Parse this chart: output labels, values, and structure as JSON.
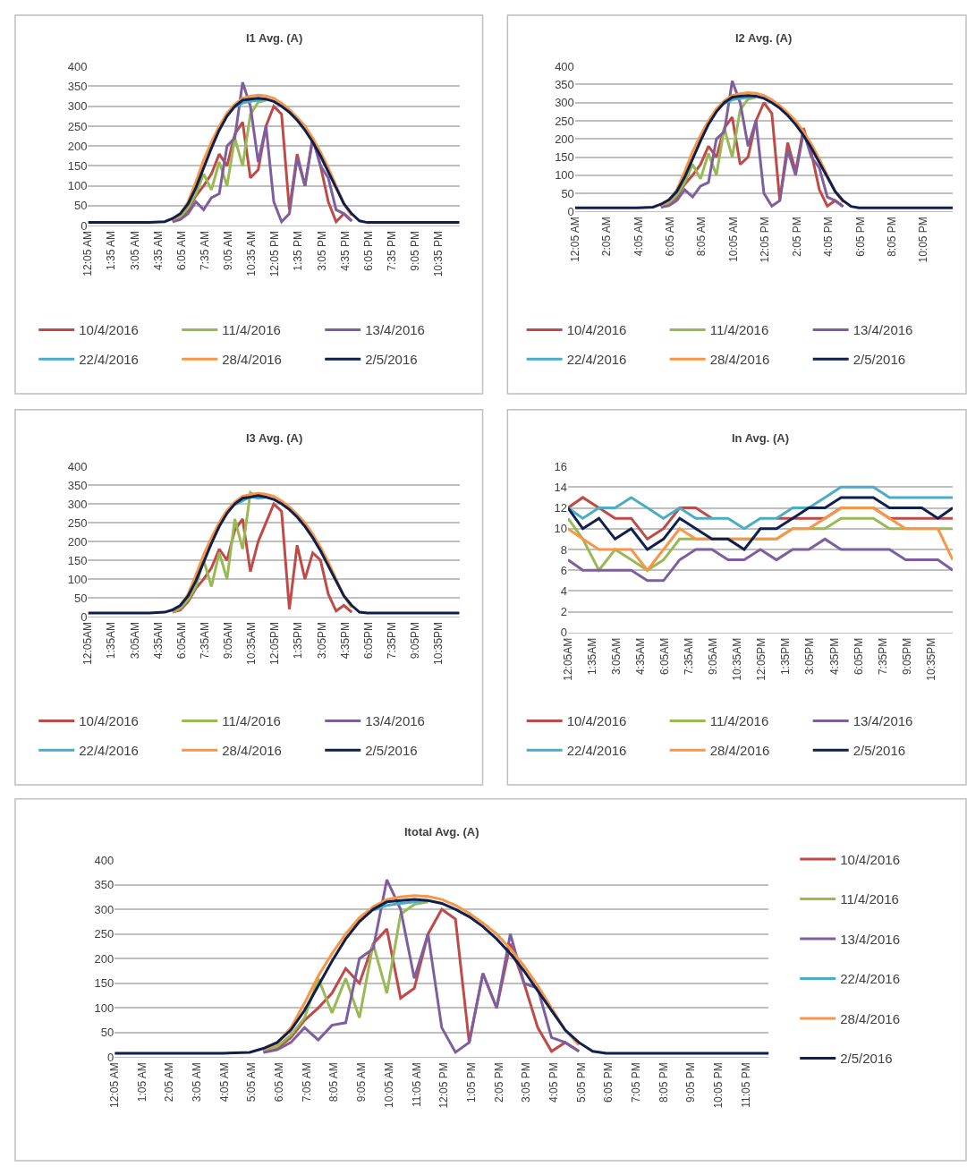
{
  "chart_data": [
    {
      "type": "line",
      "title": "I1 Avg. (A)",
      "x": [
        0.08,
        2,
        4,
        5,
        5.5,
        6,
        6.5,
        7,
        7.5,
        8,
        8.5,
        9,
        9.5,
        10,
        10.5,
        11,
        11.5,
        12,
        12.5,
        13,
        13.5,
        14,
        14.5,
        15,
        15.5,
        16,
        16.5,
        17,
        17.5,
        18,
        20,
        22,
        23.92
      ],
      "series": [
        {
          "name": "10/4/2016",
          "color": "#be4b48",
          "values": [
            null,
            null,
            null,
            null,
            10,
            18,
            40,
            75,
            100,
            130,
            180,
            150,
            230,
            260,
            120,
            140,
            250,
            300,
            280,
            40,
            180,
            100,
            220,
            150,
            60,
            10,
            30,
            12,
            null,
            null,
            null,
            null,
            null
          ]
        },
        {
          "name": "11/4/2016",
          "color": "#98b954",
          "values": [
            null,
            null,
            null,
            null,
            12,
            22,
            45,
            80,
            130,
            90,
            160,
            100,
            220,
            150,
            280,
            310,
            315,
            null,
            null,
            null,
            null,
            null,
            null,
            null,
            null,
            null,
            null,
            null,
            null,
            null,
            null,
            null,
            null
          ]
        },
        {
          "name": "13/4/2016",
          "color": "#7d5fa0",
          "values": [
            null,
            null,
            null,
            null,
            10,
            15,
            30,
            60,
            40,
            70,
            80,
            200,
            220,
            360,
            300,
            160,
            250,
            60,
            10,
            30,
            170,
            100,
            220,
            150,
            120,
            40,
            30,
            12,
            null,
            null,
            null,
            null,
            null
          ]
        },
        {
          "name": "22/4/2016",
          "color": "#4bacc6",
          "values": [
            null,
            null,
            null,
            null,
            null,
            null,
            null,
            null,
            null,
            null,
            null,
            null,
            298,
            308,
            312,
            315,
            318,
            null,
            null,
            null,
            null,
            null,
            null,
            null,
            null,
            null,
            null,
            null,
            null,
            null,
            null,
            null,
            null
          ]
        },
        {
          "name": "28/4/2016",
          "color": "#f79646",
          "values": [
            null,
            null,
            null,
            null,
            15,
            28,
            60,
            110,
            165,
            210,
            250,
            283,
            305,
            320,
            325,
            328,
            326,
            320,
            308,
            292,
            272,
            250,
            220,
            185,
            145,
            100,
            55,
            25,
            null,
            null,
            null,
            null,
            null
          ]
        },
        {
          "name": "2/5/2016",
          "color": "#0f1f4f",
          "values": [
            8,
            8,
            8,
            10,
            18,
            30,
            55,
            95,
            145,
            195,
            240,
            275,
            300,
            315,
            318,
            320,
            318,
            312,
            300,
            285,
            265,
            240,
            210,
            175,
            135,
            95,
            55,
            30,
            12,
            8,
            8,
            8,
            8
          ]
        }
      ],
      "xlim": [
        0.08,
        23.92
      ],
      "xticks": [
        {
          "value": 0.08,
          "label": "12:05 AM"
        },
        {
          "value": 1.58,
          "label": "1:35 AM"
        },
        {
          "value": 3.08,
          "label": "3:05 AM"
        },
        {
          "value": 4.58,
          "label": "4:35 AM"
        },
        {
          "value": 6.08,
          "label": "6:05 AM"
        },
        {
          "value": 7.58,
          "label": "7:35 AM"
        },
        {
          "value": 9.08,
          "label": "9:05 AM"
        },
        {
          "value": 10.58,
          "label": "10:35 AM"
        },
        {
          "value": 12.08,
          "label": "12:05 PM"
        },
        {
          "value": 13.58,
          "label": "1:35 PM"
        },
        {
          "value": 15.08,
          "label": "3:05 PM"
        },
        {
          "value": 16.58,
          "label": "4:35 PM"
        },
        {
          "value": 18.08,
          "label": "6:05 PM"
        },
        {
          "value": 19.58,
          "label": "7:35 PM"
        },
        {
          "value": 21.08,
          "label": "9:05 PM"
        },
        {
          "value": 22.58,
          "label": "10:35 PM"
        }
      ],
      "ylim": [
        0,
        400
      ],
      "yticks": [
        0,
        50,
        100,
        150,
        200,
        250,
        300,
        350,
        400
      ],
      "grid": "y",
      "legend": "bottom"
    },
    {
      "type": "line",
      "title": "I2 Avg. (A)",
      "x": [
        0.08,
        2,
        4,
        5,
        5.5,
        6,
        6.5,
        7,
        7.5,
        8,
        8.5,
        9,
        9.5,
        10,
        10.5,
        11,
        11.5,
        12,
        12.5,
        13,
        13.5,
        14,
        14.5,
        15,
        15.5,
        16,
        16.5,
        17,
        17.5,
        18,
        20,
        22,
        23.92
      ],
      "series": [
        {
          "name": "10/4/2016",
          "color": "#be4b48",
          "values": [
            null,
            null,
            null,
            null,
            12,
            20,
            40,
            75,
            100,
            130,
            180,
            150,
            230,
            260,
            130,
            150,
            250,
            300,
            270,
            30,
            190,
            110,
            230,
            160,
            60,
            15,
            30,
            14,
            null,
            null,
            null,
            null,
            null
          ]
        },
        {
          "name": "11/4/2016",
          "color": "#98b954",
          "values": [
            null,
            null,
            null,
            null,
            14,
            24,
            45,
            80,
            130,
            90,
            160,
            100,
            230,
            150,
            280,
            310,
            315,
            null,
            null,
            null,
            null,
            null,
            null,
            null,
            null,
            null,
            null,
            null,
            null,
            null,
            null,
            null,
            null
          ]
        },
        {
          "name": "13/4/2016",
          "color": "#7d5fa0",
          "values": [
            null,
            null,
            null,
            null,
            12,
            16,
            30,
            60,
            40,
            70,
            80,
            200,
            220,
            360,
            300,
            180,
            250,
            50,
            15,
            30,
            170,
            100,
            220,
            150,
            120,
            40,
            30,
            14,
            null,
            null,
            null,
            null,
            null
          ]
        },
        {
          "name": "22/4/2016",
          "color": "#4bacc6",
          "values": [
            null,
            null,
            null,
            null,
            null,
            null,
            null,
            null,
            null,
            null,
            null,
            null,
            298,
            308,
            312,
            315,
            318,
            null,
            null,
            null,
            null,
            null,
            null,
            null,
            null,
            null,
            null,
            null,
            null,
            null,
            null,
            null,
            null
          ]
        },
        {
          "name": "28/4/2016",
          "color": "#f79646",
          "values": [
            null,
            null,
            null,
            null,
            17,
            30,
            60,
            110,
            165,
            210,
            250,
            283,
            305,
            320,
            325,
            328,
            326,
            320,
            308,
            292,
            272,
            250,
            220,
            185,
            145,
            100,
            55,
            25,
            null,
            null,
            null,
            null,
            null
          ]
        },
        {
          "name": "2/5/2016",
          "color": "#0f1f4f",
          "values": [
            10,
            10,
            10,
            12,
            20,
            32,
            55,
            95,
            145,
            195,
            240,
            275,
            300,
            315,
            318,
            320,
            318,
            312,
            300,
            285,
            265,
            240,
            210,
            175,
            135,
            95,
            55,
            30,
            14,
            10,
            10,
            10,
            10
          ]
        }
      ],
      "xlim": [
        0.08,
        23.92
      ],
      "xticks": [
        {
          "value": 0.08,
          "label": "12:05 AM"
        },
        {
          "value": 2.08,
          "label": "2:05 AM"
        },
        {
          "value": 4.08,
          "label": "4:05 AM"
        },
        {
          "value": 6.08,
          "label": "6:05 AM"
        },
        {
          "value": 8.08,
          "label": "8:05 AM"
        },
        {
          "value": 10.08,
          "label": "10:05 AM"
        },
        {
          "value": 12.08,
          "label": "12:05 PM"
        },
        {
          "value": 14.08,
          "label": "2:05 PM"
        },
        {
          "value": 16.08,
          "label": "4:05 PM"
        },
        {
          "value": 18.08,
          "label": "6:05 PM"
        },
        {
          "value": 20.08,
          "label": "8:05 PM"
        },
        {
          "value": 22.08,
          "label": "10:05 PM"
        }
      ],
      "ylim": [
        0,
        400
      ],
      "yticks": [
        0,
        50,
        100,
        150,
        200,
        250,
        300,
        350,
        400
      ],
      "grid": "y",
      "legend": "bottom"
    },
    {
      "type": "line",
      "title": "I3 Avg. (A)",
      "x": [
        0.08,
        2,
        4,
        5,
        5.5,
        6,
        6.5,
        7,
        7.5,
        8,
        8.5,
        9,
        9.5,
        10,
        10.5,
        11,
        11.5,
        12,
        12.5,
        13,
        13.5,
        14,
        14.5,
        15,
        15.5,
        16,
        16.5,
        17,
        17.5,
        18,
        20,
        22,
        23.92
      ],
      "series": [
        {
          "name": "10/4/2016",
          "color": "#be4b48",
          "values": [
            null,
            null,
            null,
            null,
            12,
            18,
            40,
            75,
            100,
            130,
            180,
            150,
            230,
            260,
            120,
            200,
            250,
            300,
            280,
            20,
            190,
            100,
            170,
            150,
            60,
            15,
            30,
            12,
            null,
            null,
            null,
            null,
            null
          ]
        },
        {
          "name": "11/4/2016",
          "color": "#98b954",
          "values": [
            null,
            null,
            null,
            null,
            12,
            22,
            45,
            80,
            150,
            80,
            170,
            100,
            260,
            180,
            330,
            315,
            318,
            null,
            null,
            null,
            null,
            null,
            null,
            null,
            null,
            null,
            null,
            null,
            null,
            null,
            null,
            null,
            null
          ]
        },
        {
          "name": "13/4/2016",
          "color": "#7d5fa0",
          "values": [
            null,
            null,
            null,
            null,
            null,
            null,
            null,
            null,
            null,
            null,
            null,
            null,
            null,
            null,
            null,
            null,
            null,
            null,
            null,
            null,
            null,
            null,
            null,
            null,
            null,
            null,
            null,
            null,
            null,
            null,
            null,
            null,
            null
          ]
        },
        {
          "name": "22/4/2016",
          "color": "#4bacc6",
          "values": [
            null,
            null,
            null,
            null,
            null,
            null,
            null,
            null,
            null,
            null,
            null,
            null,
            298,
            308,
            320,
            315,
            318,
            null,
            null,
            null,
            null,
            null,
            null,
            null,
            null,
            null,
            null,
            null,
            null,
            null,
            null,
            null,
            null
          ]
        },
        {
          "name": "28/4/2016",
          "color": "#f79646",
          "values": [
            null,
            null,
            null,
            null,
            15,
            28,
            60,
            110,
            165,
            210,
            250,
            283,
            305,
            320,
            325,
            328,
            326,
            320,
            308,
            292,
            272,
            250,
            220,
            185,
            145,
            100,
            55,
            25,
            null,
            null,
            null,
            null,
            null
          ]
        },
        {
          "name": "2/5/2016",
          "color": "#0f1f4f",
          "values": [
            10,
            10,
            10,
            12,
            18,
            30,
            55,
            95,
            145,
            195,
            240,
            275,
            300,
            315,
            318,
            322,
            318,
            312,
            300,
            285,
            265,
            240,
            210,
            175,
            135,
            95,
            55,
            30,
            12,
            10,
            10,
            10,
            10
          ]
        }
      ],
      "xlim": [
        0.08,
        23.92
      ],
      "xticks": [
        {
          "value": 0.08,
          "label": "12:05AM"
        },
        {
          "value": 1.58,
          "label": "1:35AM"
        },
        {
          "value": 3.08,
          "label": "3:05AM"
        },
        {
          "value": 4.58,
          "label": "4:35AM"
        },
        {
          "value": 6.08,
          "label": "6:05AM"
        },
        {
          "value": 7.58,
          "label": "7:35AM"
        },
        {
          "value": 9.08,
          "label": "9:05AM"
        },
        {
          "value": 10.58,
          "label": "10:35AM"
        },
        {
          "value": 12.08,
          "label": "12:05PM"
        },
        {
          "value": 13.58,
          "label": "1:35PM"
        },
        {
          "value": 15.08,
          "label": "3:05PM"
        },
        {
          "value": 16.58,
          "label": "4:35PM"
        },
        {
          "value": 18.08,
          "label": "6:05PM"
        },
        {
          "value": 19.58,
          "label": "7:35PM"
        },
        {
          "value": 21.08,
          "label": "9:05PM"
        },
        {
          "value": 22.58,
          "label": "10:35PM"
        }
      ],
      "ylim": [
        0,
        400
      ],
      "yticks": [
        0,
        50,
        100,
        150,
        200,
        250,
        300,
        350,
        400
      ],
      "grid": "y",
      "legend": "bottom"
    },
    {
      "type": "line",
      "title": "In Avg. (A)",
      "x": [
        0.08,
        1,
        2,
        3,
        4,
        5,
        6,
        7,
        8,
        9,
        10,
        11,
        12,
        13,
        14,
        15,
        16,
        17,
        18,
        19,
        20,
        21,
        22,
        23,
        23.92
      ],
      "series": [
        {
          "name": "10/4/2016",
          "color": "#be4b48",
          "values": [
            12,
            13,
            12,
            11,
            11,
            9,
            10,
            12,
            12,
            11,
            null,
            null,
            null,
            11,
            11,
            11,
            11,
            12,
            12,
            12,
            11,
            11,
            11,
            11,
            11
          ]
        },
        {
          "name": "11/4/2016",
          "color": "#98b954",
          "values": [
            11,
            9,
            6,
            8,
            7,
            6,
            7,
            9,
            9,
            9,
            9,
            9,
            9,
            9,
            10,
            10,
            10,
            11,
            11,
            11,
            10,
            10,
            10,
            10,
            10
          ]
        },
        {
          "name": "13/4/2016",
          "color": "#7d5fa0",
          "values": [
            7,
            6,
            6,
            6,
            6,
            5,
            5,
            7,
            8,
            8,
            7,
            7,
            8,
            7,
            8,
            8,
            9,
            8,
            8,
            8,
            8,
            7,
            7,
            7,
            6
          ]
        },
        {
          "name": "22/4/2016",
          "color": "#4bacc6",
          "values": [
            12,
            11,
            12,
            12,
            13,
            12,
            11,
            12,
            11,
            11,
            11,
            10,
            11,
            11,
            12,
            12,
            13,
            14,
            14,
            14,
            13,
            13,
            13,
            13,
            13
          ]
        },
        {
          "name": "28/4/2016",
          "color": "#f79646",
          "values": [
            10,
            9,
            8,
            8,
            8,
            6,
            8,
            10,
            9,
            9,
            9,
            9,
            9,
            9,
            10,
            10,
            11,
            12,
            12,
            12,
            11,
            10,
            10,
            10,
            7
          ]
        },
        {
          "name": "2/5/2016",
          "color": "#0f1f4f",
          "values": [
            12,
            10,
            11,
            9,
            10,
            8,
            9,
            11,
            10,
            9,
            9,
            8,
            10,
            10,
            11,
            12,
            12,
            13,
            13,
            13,
            12,
            12,
            12,
            11,
            12
          ]
        }
      ],
      "xlim": [
        0.08,
        23.92
      ],
      "xticks": [
        {
          "value": 0.08,
          "label": "12:05AM"
        },
        {
          "value": 1.58,
          "label": "1:35AM"
        },
        {
          "value": 3.08,
          "label": "3:05AM"
        },
        {
          "value": 4.58,
          "label": "4:35AM"
        },
        {
          "value": 6.08,
          "label": "6:05AM"
        },
        {
          "value": 7.58,
          "label": "7:35AM"
        },
        {
          "value": 9.08,
          "label": "9:05AM"
        },
        {
          "value": 10.58,
          "label": "10:35AM"
        },
        {
          "value": 12.08,
          "label": "12:05PM"
        },
        {
          "value": 13.58,
          "label": "1:35PM"
        },
        {
          "value": 15.08,
          "label": "3:05PM"
        },
        {
          "value": 16.58,
          "label": "4:35PM"
        },
        {
          "value": 18.08,
          "label": "6:05PM"
        },
        {
          "value": 19.58,
          "label": "7:35PM"
        },
        {
          "value": 21.08,
          "label": "9:05PM"
        },
        {
          "value": 22.58,
          "label": "10:35PM"
        }
      ],
      "ylim": [
        0,
        16
      ],
      "yticks": [
        0,
        2,
        4,
        6,
        8,
        10,
        12,
        14,
        16
      ],
      "grid": "y",
      "legend": "bottom"
    },
    {
      "type": "line",
      "title": "Itotal Avg. (A)",
      "x": [
        0.08,
        2,
        4,
        5,
        5.5,
        6,
        6.5,
        7,
        7.5,
        8,
        8.5,
        9,
        9.5,
        10,
        10.5,
        11,
        11.5,
        12,
        12.5,
        13,
        13.5,
        14,
        14.5,
        15,
        15.5,
        16,
        16.5,
        17,
        17.5,
        18,
        20,
        22,
        23.92
      ],
      "series": [
        {
          "name": "10/4/2016",
          "color": "#be4b48",
          "values": [
            null,
            null,
            null,
            null,
            10,
            18,
            40,
            75,
            100,
            130,
            180,
            150,
            230,
            260,
            120,
            140,
            250,
            300,
            280,
            30,
            170,
            100,
            230,
            150,
            60,
            12,
            30,
            12,
            null,
            null,
            null,
            null,
            null
          ]
        },
        {
          "name": "11/4/2016",
          "color": "#98b954",
          "values": [
            null,
            null,
            null,
            null,
            12,
            22,
            45,
            80,
            160,
            90,
            160,
            80,
            230,
            130,
            290,
            310,
            315,
            null,
            null,
            null,
            null,
            null,
            null,
            null,
            null,
            null,
            null,
            null,
            null,
            null,
            null,
            null,
            null
          ]
        },
        {
          "name": "13/4/2016",
          "color": "#7d5fa0",
          "values": [
            null,
            null,
            null,
            null,
            10,
            15,
            30,
            60,
            35,
            65,
            70,
            200,
            220,
            360,
            300,
            160,
            250,
            60,
            10,
            30,
            170,
            100,
            250,
            150,
            140,
            40,
            30,
            12,
            null,
            null,
            null,
            null,
            null
          ]
        },
        {
          "name": "22/4/2016",
          "color": "#4bacc6",
          "values": [
            null,
            null,
            null,
            null,
            null,
            null,
            null,
            null,
            null,
            null,
            null,
            null,
            298,
            308,
            312,
            315,
            318,
            null,
            null,
            null,
            null,
            null,
            null,
            null,
            null,
            null,
            null,
            null,
            null,
            null,
            null,
            null,
            null
          ]
        },
        {
          "name": "28/4/2016",
          "color": "#f79646",
          "values": [
            null,
            null,
            null,
            null,
            15,
            28,
            60,
            110,
            165,
            210,
            250,
            283,
            305,
            320,
            325,
            328,
            326,
            320,
            308,
            292,
            272,
            250,
            220,
            185,
            145,
            100,
            55,
            25,
            null,
            null,
            null,
            null,
            null
          ]
        },
        {
          "name": "2/5/2016",
          "color": "#0f1f4f",
          "values": [
            8,
            8,
            8,
            10,
            18,
            30,
            55,
            95,
            145,
            195,
            240,
            275,
            300,
            315,
            318,
            320,
            318,
            312,
            300,
            285,
            265,
            240,
            210,
            175,
            135,
            95,
            55,
            30,
            12,
            8,
            8,
            8,
            8
          ]
        }
      ],
      "xlim": [
        0.08,
        23.92
      ],
      "xticks": [
        {
          "value": 0.08,
          "label": "12:05 AM"
        },
        {
          "value": 1.08,
          "label": "1:05 AM"
        },
        {
          "value": 2.08,
          "label": "2:05 AM"
        },
        {
          "value": 3.08,
          "label": "3:05 AM"
        },
        {
          "value": 4.08,
          "label": "4:05 AM"
        },
        {
          "value": 5.08,
          "label": "5:05 AM"
        },
        {
          "value": 6.08,
          "label": "6:05 AM"
        },
        {
          "value": 7.08,
          "label": "7:05 AM"
        },
        {
          "value": 8.08,
          "label": "8:05 AM"
        },
        {
          "value": 9.08,
          "label": "9:05 AM"
        },
        {
          "value": 10.08,
          "label": "10:05 AM"
        },
        {
          "value": 11.08,
          "label": "11:05 AM"
        },
        {
          "value": 12.08,
          "label": "12:05 PM"
        },
        {
          "value": 13.08,
          "label": "1:05 PM"
        },
        {
          "value": 14.08,
          "label": "2:05 PM"
        },
        {
          "value": 15.08,
          "label": "3:05 PM"
        },
        {
          "value": 16.08,
          "label": "4:05 PM"
        },
        {
          "value": 17.08,
          "label": "5:05 PM"
        },
        {
          "value": 18.08,
          "label": "6:05 PM"
        },
        {
          "value": 19.08,
          "label": "7:05 PM"
        },
        {
          "value": 20.08,
          "label": "8:05 PM"
        },
        {
          "value": 21.08,
          "label": "9:05 PM"
        },
        {
          "value": 22.08,
          "label": "10:05 PM"
        },
        {
          "value": 23.08,
          "label": "11:05 PM"
        }
      ],
      "ylim": [
        0,
        400
      ],
      "yticks": [
        0,
        50,
        100,
        150,
        200,
        250,
        300,
        350,
        400
      ],
      "grid": "y",
      "legend": "right"
    }
  ]
}
